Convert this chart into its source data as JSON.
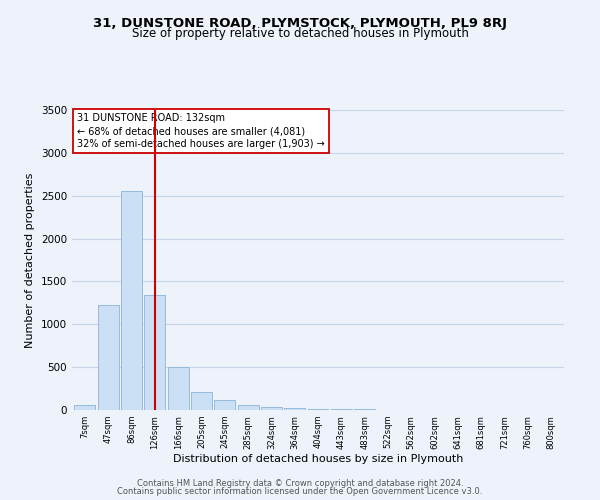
{
  "title1": "31, DUNSTONE ROAD, PLYMSTOCK, PLYMOUTH, PL9 8RJ",
  "title2": "Size of property relative to detached houses in Plymouth",
  "xlabel": "Distribution of detached houses by size in Plymouth",
  "ylabel": "Number of detached properties",
  "bar_labels": [
    "7sqm",
    "47sqm",
    "86sqm",
    "126sqm",
    "166sqm",
    "205sqm",
    "245sqm",
    "285sqm",
    "324sqm",
    "364sqm",
    "404sqm",
    "443sqm",
    "483sqm",
    "522sqm",
    "562sqm",
    "602sqm",
    "641sqm",
    "681sqm",
    "721sqm",
    "760sqm",
    "800sqm"
  ],
  "bar_values": [
    55,
    1230,
    2560,
    1340,
    500,
    210,
    115,
    55,
    30,
    20,
    15,
    10,
    8,
    5,
    5,
    5,
    3,
    3,
    2,
    2,
    2
  ],
  "bar_color": "#cce0f5",
  "bar_edge_color": "#8ab4d8",
  "vline_x": 3,
  "vline_color": "#cc0000",
  "annotation_title": "31 DUNSTONE ROAD: 132sqm",
  "annotation_line1": "← 68% of detached houses are smaller (4,081)",
  "annotation_line2": "32% of semi-detached houses are larger (1,903) →",
  "annotation_box_color": "#ffffff",
  "annotation_box_edge": "#cc0000",
  "ylim": [
    0,
    3500
  ],
  "yticks": [
    0,
    500,
    1000,
    1500,
    2000,
    2500,
    3000,
    3500
  ],
  "footer1": "Contains HM Land Registry data © Crown copyright and database right 2024.",
  "footer2": "Contains public sector information licensed under the Open Government Licence v3.0.",
  "bg_color": "#edf2fb",
  "grid_color": "#c8d4e8",
  "title1_fontsize": 9.5,
  "title2_fontsize": 8.5
}
